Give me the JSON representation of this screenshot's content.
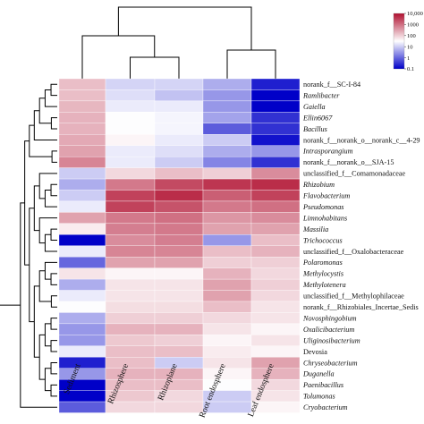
{
  "chart_data": {
    "type": "heatmap",
    "title": "",
    "columns": [
      "Sediment",
      "Rhizosphere",
      "Rhizoplane",
      "Root endosphere",
      "Leaf endosphere"
    ],
    "rows": [
      {
        "name": "norank_f__SC-I-84",
        "italic": false,
        "values": [
          150,
          12,
          12,
          5,
          0.2
        ]
      },
      {
        "name": "Ramlibacter",
        "italic": true,
        "values": [
          150,
          15,
          8,
          3,
          0.1
        ]
      },
      {
        "name": "Gaiella",
        "italic": true,
        "values": [
          180,
          20,
          20,
          3,
          0.1
        ]
      },
      {
        "name": "Ellin6067",
        "italic": true,
        "values": [
          200,
          30,
          25,
          4,
          0.3
        ]
      },
      {
        "name": "Bacillus",
        "italic": true,
        "values": [
          200,
          30,
          25,
          0.8,
          0.3
        ]
      },
      {
        "name": "norank_f__norank_o__norank_c__4-29",
        "italic": false,
        "values": [
          250,
          40,
          20,
          10,
          0.15
        ]
      },
      {
        "name": "Intrasporangium",
        "italic": true,
        "values": [
          300,
          20,
          15,
          5,
          3
        ]
      },
      {
        "name": "norank_f__norank_o__SJA-15",
        "italic": false,
        "values": [
          600,
          20,
          10,
          2,
          0.3
        ]
      },
      {
        "name": "unclassified_f__Comamonadaceae",
        "italic": false,
        "values": [
          10,
          80,
          150,
          100,
          500
        ]
      },
      {
        "name": "Rhizobium",
        "italic": true,
        "values": [
          5,
          800,
          2500,
          4000,
          5000
        ]
      },
      {
        "name": "Flavobacterium",
        "italic": true,
        "values": [
          10,
          3000,
          5000,
          1500,
          3000
        ]
      },
      {
        "name": "Pseudomonas",
        "italic": true,
        "values": [
          20,
          3000,
          2000,
          800,
          1000
        ]
      },
      {
        "name": "Limnohabitans",
        "italic": true,
        "values": [
          300,
          800,
          1000,
          400,
          500
        ]
      },
      {
        "name": "Massilia",
        "italic": true,
        "values": [
          50,
          700,
          800,
          300,
          300
        ]
      },
      {
        "name": "Trichococcus",
        "italic": true,
        "values": [
          0.1,
          500,
          700,
          3,
          150
        ]
      },
      {
        "name": "unclassified_f__Oxalobacteraceae",
        "italic": false,
        "values": [
          20,
          600,
          600,
          150,
          200
        ]
      },
      {
        "name": "Polaromonas",
        "italic": true,
        "values": [
          1,
          300,
          300,
          100,
          100
        ]
      },
      {
        "name": "Methylocystis",
        "italic": true,
        "values": [
          60,
          40,
          40,
          200,
          80
        ]
      },
      {
        "name": "Methylotenera",
        "italic": true,
        "values": [
          5,
          60,
          60,
          300,
          100
        ]
      },
      {
        "name": "unclassified_f__Methylophilaceae",
        "italic": false,
        "values": [
          20,
          60,
          60,
          300,
          80
        ]
      },
      {
        "name": "norank_f__Rhizobiales_Incertae_Sedis",
        "italic": false,
        "values": [
          30,
          70,
          70,
          150,
          60
        ]
      },
      {
        "name": "Novosphingobium",
        "italic": true,
        "values": [
          5,
          100,
          100,
          80,
          60
        ]
      },
      {
        "name": "Oxalicibacterium",
        "italic": true,
        "values": [
          3,
          200,
          200,
          60,
          40
        ]
      },
      {
        "name": "Uliginosibacterium",
        "italic": true,
        "values": [
          3,
          120,
          100,
          40,
          60
        ]
      },
      {
        "name": "Devosia",
        "italic": false,
        "values": [
          20,
          150,
          150,
          50,
          40
        ]
      },
      {
        "name": "Chryseobacterium",
        "italic": true,
        "values": [
          0.2,
          150,
          10,
          60,
          300
        ]
      },
      {
        "name": "Duganella",
        "italic": true,
        "values": [
          3,
          200,
          200,
          40,
          200
        ]
      },
      {
        "name": "Paenibacillus",
        "italic": true,
        "values": [
          0.1,
          150,
          150,
          30,
          80
        ]
      },
      {
        "name": "Tolumonas",
        "italic": true,
        "values": [
          0.1,
          120,
          80,
          10,
          60
        ]
      },
      {
        "name": "Cryobacterium",
        "italic": true,
        "values": [
          0.8,
          80,
          80,
          10,
          40
        ]
      }
    ],
    "color_scale": {
      "type": "log",
      "ticks": [
        "10,000",
        "1000",
        "100",
        "10",
        "1",
        "0.1"
      ],
      "tick_values": [
        10000,
        1000,
        100,
        10,
        1,
        0.1
      ],
      "low_color": "#0000c8",
      "mid_color": "#ffffff",
      "high_color": "#b01030"
    },
    "legend_position": "top-right",
    "dendrograms": [
      "top (columns)",
      "left (rows)"
    ]
  }
}
